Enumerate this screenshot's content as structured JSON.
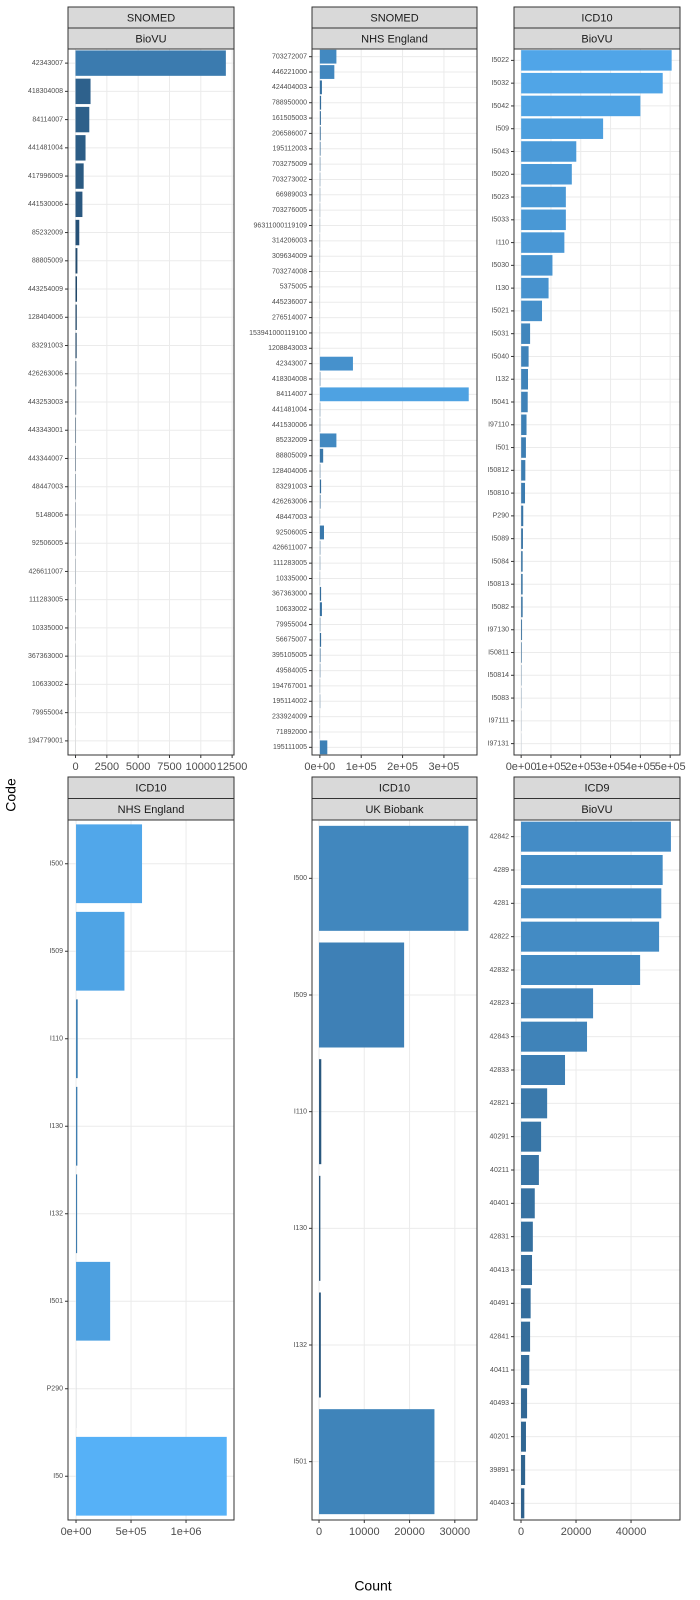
{
  "labels": {
    "x": "Count",
    "y": "Code"
  },
  "color_scale": {
    "type": "log",
    "low": "#132B43",
    "high": "#56B1F7",
    "lim": [
      10,
      1400000
    ]
  },
  "chart_data": [
    {
      "type": "bar",
      "orientation": "horizontal",
      "strips": [
        "SNOMED",
        "BioVU"
      ],
      "grid": true,
      "categories": [
        "42343007",
        "418304008",
        "84114007",
        "441481004",
        "417996009",
        "441530006",
        "85232009",
        "88805009",
        "443254009",
        "128404006",
        "83291003",
        "426263006",
        "443253003",
        "443343001",
        "443344007",
        "48447003",
        "5148006",
        "92506005",
        "426611007",
        "111283005",
        "10335000",
        "367363000",
        "10633002",
        "79955004",
        "194779001"
      ],
      "values": [
        12000,
        1200,
        1100,
        800,
        650,
        550,
        300,
        150,
        120,
        100,
        90,
        60,
        50,
        40,
        35,
        30,
        25,
        20,
        18,
        15,
        12,
        10,
        8,
        6,
        5
      ],
      "xlim": [
        -600,
        12650
      ],
      "xticks": [
        0,
        2500,
        5000,
        7500,
        10000,
        12500
      ]
    },
    {
      "type": "bar",
      "orientation": "horizontal",
      "strips": [
        "SNOMED",
        "NHS England"
      ],
      "grid": true,
      "categories": [
        "703272007",
        "446221000",
        "424404003",
        "788950000",
        "161505003",
        "206586007",
        "195112003",
        "703275009",
        "703273002",
        "66989003",
        "703276005",
        "96311000119109",
        "314206003",
        "309634009",
        "703274008",
        "5375005",
        "445236007",
        "276514007",
        "153941000119100",
        "1208843003",
        "42343007",
        "418304008",
        "84114007",
        "441481004",
        "441530006",
        "85232009",
        "88805009",
        "128404006",
        "83291003",
        "426263006",
        "48447003",
        "92506005",
        "426611007",
        "111283005",
        "10335000",
        "367363000",
        "10633002",
        "79955004",
        "56675007",
        "395105005",
        "49584005",
        "194767001",
        "195114002",
        "233924009",
        "71892000",
        "195111005"
      ],
      "values": [
        40000,
        35000,
        5000,
        3000,
        2500,
        2000,
        1500,
        1000,
        800,
        700,
        600,
        500,
        400,
        400,
        300,
        300,
        250,
        200,
        200,
        150,
        80000,
        1000,
        360000,
        800,
        700,
        40000,
        8000,
        1000,
        3000,
        1500,
        500,
        10000,
        1000,
        800,
        500,
        3000,
        5000,
        1000,
        3000,
        1500,
        1000,
        500,
        800,
        300,
        300,
        18000
      ],
      "xlim": [
        -19000,
        380000
      ],
      "xticks": [
        {
          "value": 0,
          "label": "0e+00"
        },
        {
          "value": 100000,
          "label": "1e+05"
        },
        {
          "value": 200000,
          "label": "2e+05"
        },
        {
          "value": 300000,
          "label": "3e+05"
        }
      ]
    },
    {
      "type": "bar",
      "orientation": "horizontal",
      "strips": [
        "ICD10",
        "BioVU"
      ],
      "grid": true,
      "categories": [
        "I5022",
        "I5032",
        "I5042",
        "I509",
        "I5043",
        "I5020",
        "I5023",
        "I5033",
        "I110",
        "I5030",
        "I130",
        "I5021",
        "I5031",
        "I5040",
        "I132",
        "I5041",
        "I97110",
        "I501",
        "I50812",
        "I50810",
        "P290",
        "I5089",
        "I5084",
        "I50813",
        "I5082",
        "I97130",
        "I50811",
        "I50814",
        "I5083",
        "I97111",
        "I97131"
      ],
      "values": [
        505000,
        475000,
        400000,
        275000,
        185000,
        170000,
        150000,
        150000,
        145000,
        105000,
        92000,
        70000,
        30000,
        25000,
        23000,
        22000,
        18000,
        16000,
        14000,
        13000,
        7000,
        6000,
        5000,
        5000,
        5000,
        3000,
        2000,
        1000,
        800,
        500,
        300
      ],
      "xlim": [
        -24000,
        533000
      ],
      "xticks": [
        {
          "value": 0,
          "label": "0e+00"
        },
        {
          "value": 100000,
          "label": "1e+05"
        },
        {
          "value": 200000,
          "label": "2e+05"
        },
        {
          "value": 300000,
          "label": "3e+05"
        },
        {
          "value": 400000,
          "label": "4e+05"
        },
        {
          "value": 500000,
          "label": "5e+05"
        }
      ]
    },
    {
      "type": "bar",
      "orientation": "horizontal",
      "strips": [
        "ICD10",
        "NHS England"
      ],
      "grid": true,
      "categories": [
        "I500",
        "I509",
        "I110",
        "I130",
        "I132",
        "I501",
        "P290",
        "I50"
      ],
      "values": [
        600000,
        440000,
        15000,
        12000,
        10000,
        310000,
        500,
        1370000
      ],
      "xlim": [
        -73000,
        1436000
      ],
      "xticks": [
        {
          "value": 0,
          "label": "0e+00"
        },
        {
          "value": 500000,
          "label": "5e+05"
        },
        {
          "value": 1000000,
          "label": "1e+06"
        }
      ]
    },
    {
      "type": "bar",
      "orientation": "horizontal",
      "strips": [
        "ICD10",
        "UK Biobank"
      ],
      "grid": true,
      "categories": [
        "I500",
        "I509",
        "I110",
        "I130",
        "I132",
        "I501"
      ],
      "values": [
        33000,
        18800,
        500,
        300,
        400,
        25500
      ],
      "xlim": [
        -1550,
        34900
      ],
      "xticks": [
        0,
        10000,
        20000,
        30000
      ]
    },
    {
      "type": "bar",
      "orientation": "horizontal",
      "strips": [
        "ICD9",
        "BioVU"
      ],
      "grid": true,
      "categories": [
        "42842",
        "4289",
        "4281",
        "42822",
        "42832",
        "42823",
        "42843",
        "42833",
        "42821",
        "40291",
        "40211",
        "40401",
        "42831",
        "40413",
        "40491",
        "42841",
        "40411",
        "40493",
        "40201",
        "39891",
        "40403"
      ],
      "values": [
        54500,
        51500,
        51000,
        50200,
        43300,
        26200,
        24000,
        16000,
        9500,
        7300,
        6500,
        5000,
        4300,
        4000,
        3500,
        3300,
        3000,
        2200,
        1800,
        1500,
        1200
      ],
      "xlim": [
        -2550,
        57800
      ],
      "xticks": [
        0,
        20000,
        40000
      ]
    }
  ]
}
